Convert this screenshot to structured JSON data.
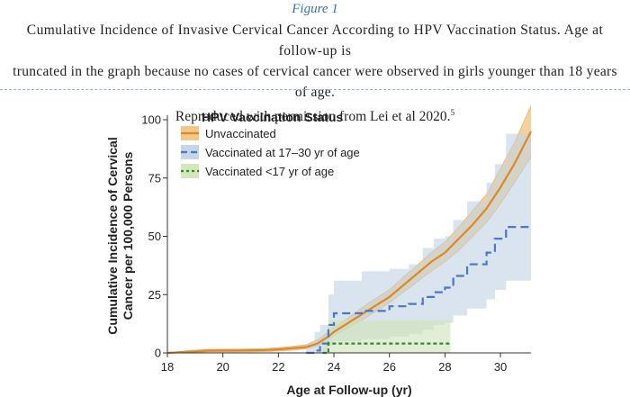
{
  "figure": {
    "label": "Figure 1",
    "caption_lines": [
      "Cumulative Incidence of Invasive Cervical Cancer According to HPV Vaccination Status. Age at follow-up is",
      "truncated in the graph because no cases of cervical cancer were observed in girls younger than 18 years of age.",
      "Reproduced with permission from Lei et al 2020."
    ],
    "caption_ref": "5"
  },
  "chart_data": {
    "type": "line",
    "title": "",
    "xlabel": "Age at Follow-up (yr)",
    "ylabel_lines": [
      "Cumulative Incidence of Cervical",
      "Cancer per 100,000 Persons"
    ],
    "xlim": [
      18,
      31.1
    ],
    "ylim": [
      0,
      100
    ],
    "xticks": [
      18,
      20,
      22,
      24,
      26,
      28,
      30
    ],
    "yticks": [
      0,
      25,
      50,
      75,
      100
    ],
    "grid": false,
    "legend": {
      "title": "HPV Vaccination Status",
      "placement": "top-left"
    },
    "series": [
      {
        "name": "Unvaccinated",
        "color": "#d9892a",
        "band_color": "#f1c27d",
        "style": "solid",
        "x": [
          18,
          18.8,
          19.5,
          20.5,
          21.5,
          22,
          22.5,
          23,
          23.4,
          23.8,
          24,
          24.4,
          24.8,
          25.2,
          25.6,
          26,
          26.5,
          27,
          27.5,
          28,
          28.5,
          29,
          29.5,
          30,
          30.5,
          31.1
        ],
        "y": [
          0,
          0.5,
          1,
          1,
          1.2,
          1.5,
          2,
          2.5,
          4,
          7,
          9,
          12,
          15,
          18,
          21,
          24,
          29,
          34,
          39,
          43,
          49,
          55,
          62,
          71,
          81,
          95
        ],
        "lower": [
          0,
          0.2,
          0.5,
          0.5,
          0.6,
          0.8,
          1.2,
          1.8,
          3,
          5.5,
          7.5,
          10,
          12.5,
          15.5,
          18.5,
          21.5,
          26,
          30.5,
          35,
          39,
          44,
          50,
          56,
          64,
          73,
          84
        ],
        "upper": [
          0,
          1,
          1.5,
          1.6,
          1.8,
          2.2,
          2.8,
          3.5,
          5.5,
          9,
          11,
          14,
          17.5,
          21,
          24,
          27,
          32.5,
          37.5,
          43,
          47.5,
          54,
          61,
          68,
          79,
          90,
          106
        ]
      },
      {
        "name": "Vaccinated at 17–30 yr of age",
        "color": "#4a78c2",
        "band_color": "#bfd2e3",
        "style": "dashed",
        "x": [
          23,
          23.3,
          23.5,
          23.8,
          24,
          24.4,
          25,
          25.6,
          26,
          26.7,
          27.2,
          27.6,
          28,
          28.3,
          28.8,
          29.5,
          29.8,
          30.2,
          31.1
        ],
        "y": [
          0,
          1,
          4,
          12,
          17,
          17,
          18,
          18,
          20,
          21,
          24,
          26,
          28,
          33,
          38,
          43,
          49,
          54,
          54
        ],
        "lower": [
          0,
          0,
          0,
          3,
          5,
          5,
          6,
          6,
          7,
          8,
          10,
          12,
          13,
          16,
          19,
          23,
          27,
          31,
          31
        ],
        "upper": [
          4,
          9,
          12,
          25,
          31,
          31,
          35,
          35,
          36,
          38,
          45,
          49,
          50,
          57,
          65,
          73,
          81,
          94,
          94
        ]
      },
      {
        "name": "Vaccinated <17 yr of age",
        "color": "#2e8b2e",
        "band_color": "#cfe3b5",
        "style": "dotted",
        "x": [
          23.6,
          23.8,
          28.2
        ],
        "y": [
          0,
          4,
          4
        ],
        "lower": [
          0,
          0,
          0
        ],
        "upper": [
          6,
          14,
          16
        ]
      }
    ]
  }
}
